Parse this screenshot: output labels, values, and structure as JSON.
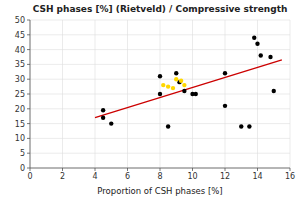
{
  "chart_data": {
    "type": "scatter",
    "title": "CSH phases [%] (Rietveld) / Compressive strength",
    "xlabel": "Proportion of CSH phases [%]",
    "xlim": [
      0,
      16
    ],
    "ylim": [
      0,
      50
    ],
    "xticks": [
      0,
      2,
      4,
      6,
      8,
      10,
      12,
      14,
      16
    ],
    "yticks": [
      0,
      5,
      10,
      15,
      20,
      25,
      30,
      35,
      40,
      45,
      50
    ],
    "grid": true,
    "series": [
      {
        "color": "black",
        "x": [
          4.5,
          4.5,
          5.0,
          8.0,
          8.0,
          8.5,
          9.0,
          9.2,
          9.5,
          10.0,
          10.2,
          12.0,
          12.0,
          13.0,
          13.5,
          13.8,
          14.0,
          14.2,
          14.8,
          15.0
        ],
        "values": [
          17,
          19.5,
          15,
          31,
          25,
          14,
          32,
          29,
          26,
          25,
          25,
          32,
          21,
          14,
          14,
          44,
          42,
          38,
          37.5,
          26
        ]
      },
      {
        "color": "#FFD700",
        "x": [
          8.2,
          8.5,
          8.8,
          9.0,
          9.3,
          9.5
        ],
        "values": [
          28,
          27.5,
          27,
          30,
          29.5,
          28
        ]
      },
      {
        "type": "line",
        "color": "#cc0000",
        "x": [
          4.0,
          15.5
        ],
        "values": [
          17.0,
          36.5
        ]
      }
    ]
  }
}
